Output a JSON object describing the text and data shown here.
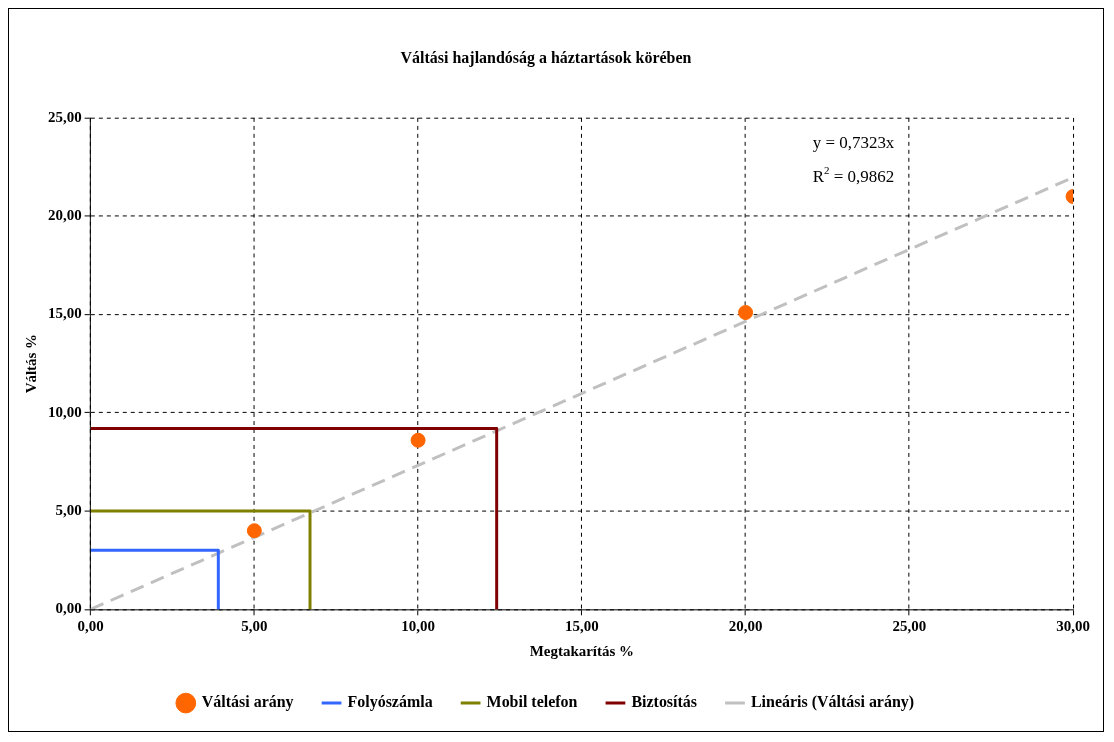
{
  "chart_data": {
    "type": "scatter",
    "title": "Váltási hajlandóság a háztartások körében",
    "xlabel": "Megtakarítás %",
    "ylabel": "Váltás %",
    "xlim": [
      0,
      30
    ],
    "ylim": [
      0,
      25
    ],
    "xticks": [
      {
        "value": 0,
        "label": "0,00"
      },
      {
        "value": 5,
        "label": "5,00"
      },
      {
        "value": 10,
        "label": "10,00"
      },
      {
        "value": 15,
        "label": "15,00"
      },
      {
        "value": 20,
        "label": "20,00"
      },
      {
        "value": 25,
        "label": "25,00"
      },
      {
        "value": 30,
        "label": "30,00"
      }
    ],
    "yticks": [
      {
        "value": 0,
        "label": "0,00"
      },
      {
        "value": 5,
        "label": "5,00"
      },
      {
        "value": 10,
        "label": "10,00"
      },
      {
        "value": 15,
        "label": "15,00"
      },
      {
        "value": 20,
        "label": "20,00"
      },
      {
        "value": 25,
        "label": "25,00"
      }
    ],
    "grid": true,
    "legend": "bottom",
    "series": [
      {
        "name": "Váltási arány",
        "color": "#ff6600",
        "marker": "circle",
        "x": [
          5,
          10,
          20,
          30
        ],
        "values": [
          4.0,
          8.6,
          15.1,
          21.0
        ]
      },
      {
        "name": "Folyószámla",
        "type": "line",
        "color": "#3366ff",
        "marker": "none",
        "line_style": "solid",
        "x": [
          0,
          3.9,
          3.9
        ],
        "values": [
          3.0,
          3.0,
          0
        ]
      },
      {
        "name": "Mobil telefon",
        "type": "line",
        "color": "#808000",
        "marker": "none",
        "line_style": "solid",
        "x": [
          0,
          6.7,
          6.7
        ],
        "values": [
          5.0,
          5.0,
          0
        ]
      },
      {
        "name": "Biztosítás",
        "type": "line",
        "color": "#800000",
        "marker": "none",
        "line_style": "solid",
        "x": [
          0,
          12.4,
          12.4
        ],
        "values": [
          9.2,
          9.2,
          0
        ]
      },
      {
        "name": "Lineáris (Váltási arány)",
        "type": "line",
        "color": "#c0c0c0",
        "marker": "none",
        "line_style": "dashed",
        "x": [
          0,
          30
        ],
        "values": [
          0,
          21.97
        ]
      }
    ],
    "annotations": [
      "y = 0,7323x",
      "R$^{2}$ = 0,9862"
    ]
  }
}
